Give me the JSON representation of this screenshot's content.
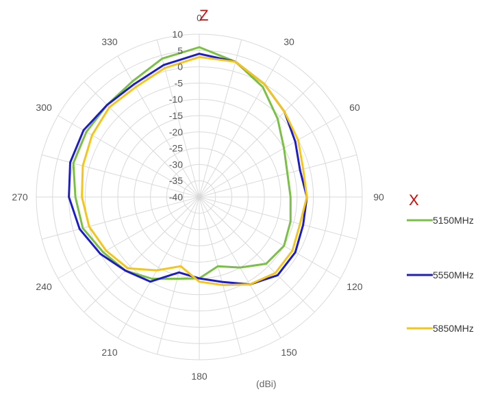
{
  "chart_data": {
    "type": "polar-line",
    "unit_label": "(dBi)",
    "axis_marks": {
      "top": "Z",
      "right": "X"
    },
    "radial_range": [
      -40,
      10
    ],
    "radial_ticks": [
      10,
      5,
      0,
      -5,
      -10,
      -15,
      -20,
      -25,
      -30,
      -35,
      -40
    ],
    "radial_tick_labels": [
      "10",
      "5",
      "0",
      "-5",
      "-10",
      "-15",
      "-20",
      "-25",
      "-30",
      "-35",
      "-40"
    ],
    "angle_ticks": [
      0,
      30,
      60,
      90,
      120,
      150,
      180,
      210,
      240,
      270,
      300,
      330
    ],
    "angle_tick_labels": [
      "0",
      "30",
      "60",
      "90",
      "120",
      "150",
      "180",
      "210",
      "240",
      "270",
      "300",
      "330"
    ],
    "angular_grid_step_deg": 15,
    "grid": true,
    "legend_position": "right",
    "series": [
      {
        "name": "5150MHz",
        "color": "#7ac143",
        "angles": [
          0,
          15,
          30,
          45,
          60,
          75,
          90,
          105,
          120,
          135,
          150,
          165,
          180,
          195,
          210,
          225,
          240,
          255,
          270,
          285,
          300,
          315,
          330,
          345
        ],
        "values": [
          6,
          3,
          -1,
          -6,
          -10,
          -12,
          -12,
          -11,
          -10,
          -11,
          -15,
          -18,
          -15,
          -14,
          -11,
          -8,
          -6,
          -3,
          -2,
          0,
          0,
          0,
          1,
          4
        ]
      },
      {
        "name": "5550MHz",
        "color": "#1c1ccc",
        "angles": [
          0,
          15,
          30,
          45,
          60,
          75,
          90,
          105,
          120,
          135,
          150,
          165,
          180,
          195,
          210,
          225,
          240,
          255,
          270,
          285,
          300,
          315,
          330,
          345
        ],
        "values": [
          4,
          3,
          0,
          -3,
          -6,
          -8,
          -7,
          -7,
          -6,
          -6,
          -9,
          -13,
          -15,
          -16,
          -10,
          -8,
          -5,
          -2,
          0,
          1,
          1,
          0,
          0,
          2
        ]
      },
      {
        "name": "5850MHz",
        "color": "#f5c518",
        "angles": [
          0,
          15,
          30,
          45,
          60,
          75,
          90,
          105,
          120,
          135,
          150,
          165,
          180,
          195,
          210,
          225,
          240,
          255,
          270,
          285,
          300,
          315,
          330,
          345
        ],
        "values": [
          3,
          3,
          0,
          -3,
          -5,
          -7,
          -7,
          -8,
          -7,
          -7,
          -9,
          -12,
          -14,
          -18,
          -14,
          -9,
          -7,
          -5,
          -4,
          -3,
          -2,
          -1,
          -1,
          1
        ]
      }
    ]
  }
}
